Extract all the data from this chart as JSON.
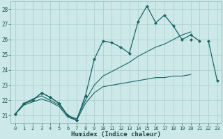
{
  "xlabel": "Humidex (Indice chaleur)",
  "bg_color": "#cce8e8",
  "grid_color": "#aacccc",
  "line_color": "#1a6666",
  "x_values": [
    0,
    1,
    2,
    3,
    4,
    5,
    6,
    7,
    8,
    9,
    10,
    11,
    12,
    13,
    14,
    15,
    16,
    17,
    18,
    19,
    20,
    21,
    22,
    23
  ],
  "line1_y": [
    21.1,
    21.8,
    22.0,
    22.5,
    22.2,
    21.8,
    21.0,
    20.7,
    22.3,
    24.7,
    25.9,
    25.8,
    25.5,
    25.1,
    27.2,
    28.2,
    27.1,
    27.6,
    26.9,
    26.0,
    26.3,
    25.9,
    null,
    null
  ],
  "line2_y": [
    21.1,
    21.8,
    22.0,
    22.5,
    22.2,
    21.8,
    21.0,
    20.7,
    22.3,
    null,
    null,
    null,
    null,
    null,
    null,
    null,
    null,
    null,
    null,
    null,
    26.0,
    null,
    25.9,
    23.3
  ],
  "line3_y": [
    21.1,
    21.8,
    22.1,
    22.3,
    22.0,
    21.7,
    21.0,
    20.8,
    22.0,
    23.0,
    23.6,
    23.9,
    24.2,
    24.5,
    24.9,
    25.2,
    25.5,
    25.7,
    26.0,
    26.3,
    26.5,
    null,
    null,
    23.3
  ],
  "line4_y": [
    21.1,
    21.7,
    21.9,
    22.1,
    21.9,
    21.6,
    20.9,
    20.7,
    21.8,
    22.5,
    22.9,
    23.0,
    23.1,
    23.2,
    23.3,
    23.4,
    23.5,
    23.5,
    23.6,
    23.6,
    23.7,
    null,
    null,
    23.3
  ],
  "xlim": [
    -0.5,
    23.5
  ],
  "ylim": [
    20.5,
    28.5
  ],
  "yticks": [
    21,
    22,
    23,
    24,
    25,
    26,
    27,
    28
  ],
  "xticks": [
    0,
    1,
    2,
    3,
    4,
    5,
    6,
    7,
    8,
    9,
    10,
    11,
    12,
    13,
    14,
    15,
    16,
    17,
    18,
    19,
    20,
    21,
    22,
    23
  ]
}
